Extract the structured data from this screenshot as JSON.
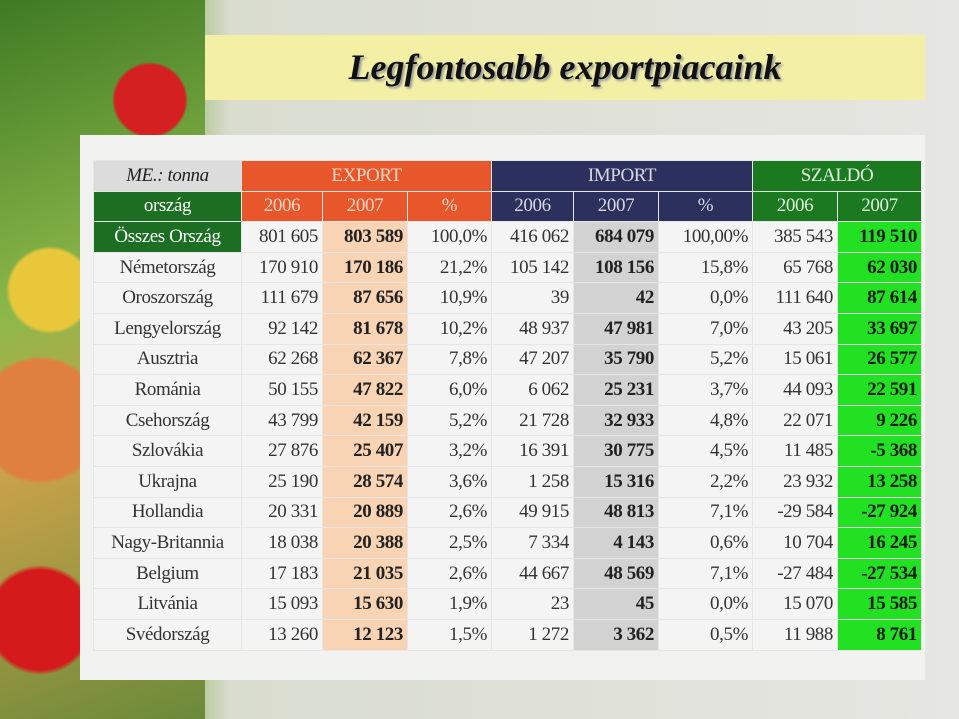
{
  "title": "Legfontosabb exportpiacaink",
  "table": {
    "unit": "ME.: tonna",
    "groups": [
      "EXPORT",
      "IMPORT",
      "SZALDÓ"
    ],
    "columns": [
      "ország",
      "2006",
      "2007",
      "%",
      "2006",
      "2007",
      "%",
      "2006",
      "2007"
    ],
    "rows": [
      [
        "Összes Ország",
        "801 605",
        "803 589",
        "100,0%",
        "416 062",
        "684 079",
        "100,00%",
        "385 543",
        "119 510"
      ],
      [
        "Németország",
        "170 910",
        "170 186",
        "21,2%",
        "105 142",
        "108 156",
        "15,8%",
        "65 768",
        "62 030"
      ],
      [
        "Oroszország",
        "111 679",
        "87 656",
        "10,9%",
        "39",
        "42",
        "0,0%",
        "111 640",
        "87 614"
      ],
      [
        "Lengyelország",
        "92 142",
        "81 678",
        "10,2%",
        "48 937",
        "47 981",
        "7,0%",
        "43 205",
        "33 697"
      ],
      [
        "Ausztria",
        "62 268",
        "62 367",
        "7,8%",
        "47 207",
        "35 790",
        "5,2%",
        "15 061",
        "26 577"
      ],
      [
        "Románia",
        "50 155",
        "47 822",
        "6,0%",
        "6 062",
        "25 231",
        "3,7%",
        "44 093",
        "22 591"
      ],
      [
        "Csehország",
        "43 799",
        "42 159",
        "5,2%",
        "21 728",
        "32 933",
        "4,8%",
        "22 071",
        "9 226"
      ],
      [
        "Szlovákia",
        "27 876",
        "25 407",
        "3,2%",
        "16 391",
        "30 775",
        "4,5%",
        "11 485",
        "-5 368"
      ],
      [
        "Ukrajna",
        "25 190",
        "28 574",
        "3,6%",
        "1 258",
        "15 316",
        "2,2%",
        "23 932",
        "13 258"
      ],
      [
        "Hollandia",
        "20 331",
        "20 889",
        "2,6%",
        "49 915",
        "48 813",
        "7,1%",
        "-29 584",
        "-27 924"
      ],
      [
        "Nagy-Britannia",
        "18 038",
        "20 388",
        "2,5%",
        "7 334",
        "4 143",
        "0,6%",
        "10 704",
        "16 245"
      ],
      [
        "Belgium",
        "17 183",
        "21 035",
        "2,6%",
        "44 667",
        "48 569",
        "7,1%",
        "-27 484",
        "-27 534"
      ],
      [
        "Litvánia",
        "15 093",
        "15 630",
        "1,9%",
        "23",
        "45",
        "0,0%",
        "15 070",
        "15 585"
      ],
      [
        "Svédország",
        "13 260",
        "12 123",
        "1,5%",
        "1 272",
        "3 362",
        "0,5%",
        "11 988",
        "8 761"
      ]
    ]
  }
}
